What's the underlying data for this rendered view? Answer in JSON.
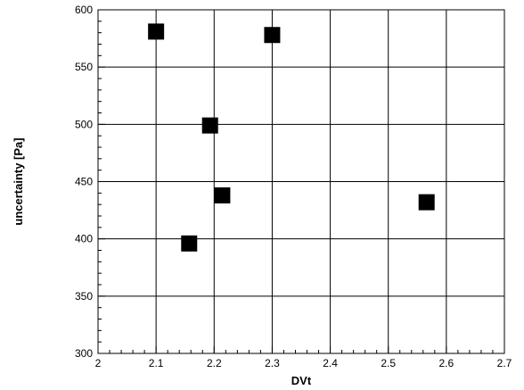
{
  "chart_data": {
    "type": "scatter",
    "title": "",
    "xlabel": "DVt",
    "ylabel": "uncertainty [Pa]",
    "xlim": [
      2,
      2.7
    ],
    "ylim": [
      300,
      600
    ],
    "x_ticks": [
      "2",
      "2.1",
      "2.2",
      "2.3",
      "2.4",
      "2.5",
      "2.6",
      "2.7"
    ],
    "y_ticks": [
      "300",
      "350",
      "400",
      "450",
      "500",
      "550",
      "600"
    ],
    "x_minor_step": 0.02,
    "y_minor_step": 10,
    "grid": true,
    "legend": "none",
    "marker": "square",
    "marker_color": "#000000",
    "points": [
      {
        "x": 2.1,
        "y": 581
      },
      {
        "x": 2.3,
        "y": 578
      },
      {
        "x": 2.193,
        "y": 499
      },
      {
        "x": 2.214,
        "y": 438
      },
      {
        "x": 2.157,
        "y": 396
      },
      {
        "x": 2.566,
        "y": 432
      }
    ]
  }
}
